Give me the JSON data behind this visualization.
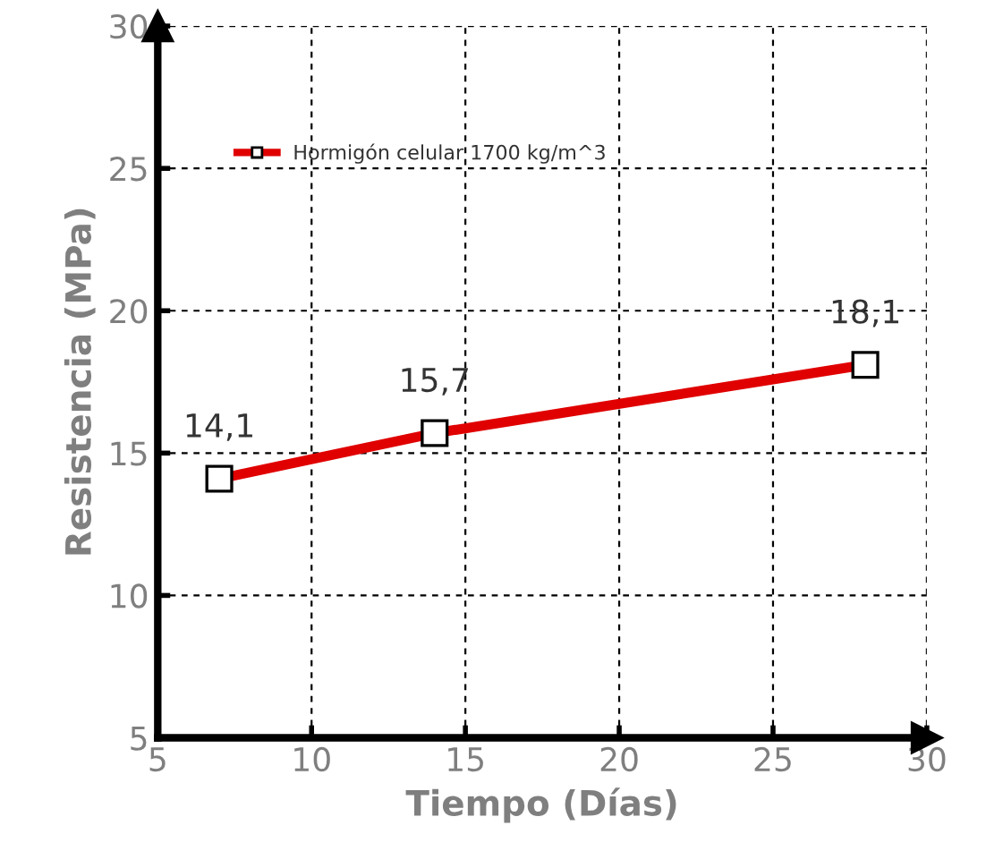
{
  "chart_data": {
    "type": "line",
    "xlabel": "Tiempo (Días)",
    "ylabel": "Resistencia (MPa)",
    "x": [
      7,
      14,
      28
    ],
    "series": [
      {
        "name": "Hormigón celular 1700 kg/m^3",
        "color": "#e00000",
        "values": [
          14.1,
          15.7,
          18.1
        ],
        "value_labels": [
          "14,1",
          "15,7",
          "18,1"
        ]
      }
    ],
    "xlim": [
      5,
      30
    ],
    "ylim": [
      5,
      30
    ],
    "xticks": [
      5,
      10,
      15,
      20,
      25,
      30
    ],
    "yticks": [
      5,
      10,
      15,
      20,
      25,
      30
    ],
    "grid": true,
    "legend": "top left",
    "marker": "square",
    "line_style": "solid"
  }
}
